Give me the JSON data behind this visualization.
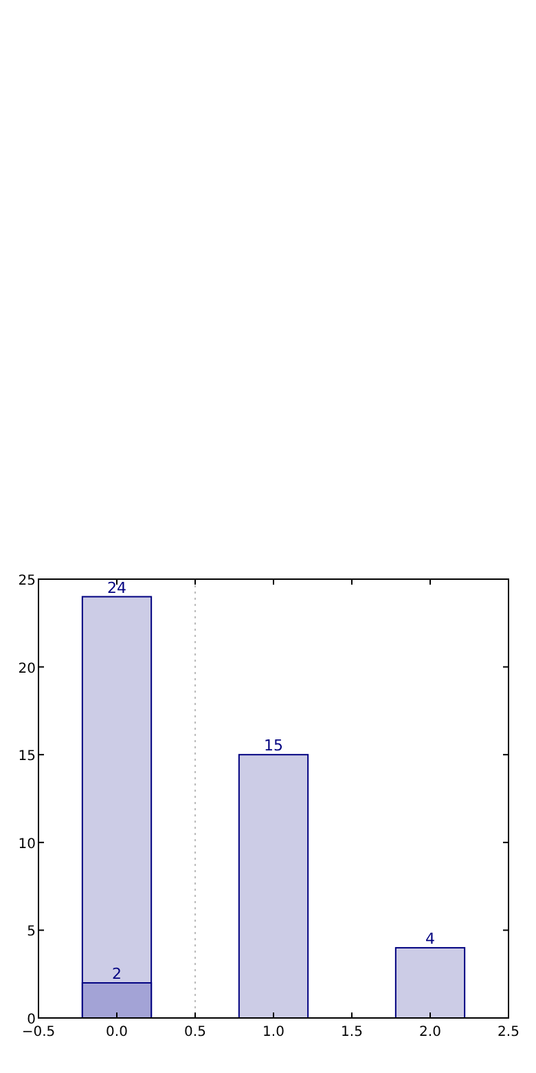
{
  "chart_data": {
    "type": "bar",
    "x": [
      0,
      1,
      2
    ],
    "series": [
      {
        "color": "#ccccE6",
        "values": [
          24,
          15,
          4
        ]
      },
      {
        "color": "#a3a3d6",
        "values": [
          2,
          null,
          null
        ]
      }
    ],
    "xlim": [
      -0.5,
      2.5
    ],
    "xticks": [
      {
        "value": -0.5,
        "label": "−0.5"
      },
      {
        "value": 0,
        "label": "0.0"
      },
      {
        "value": 0.5,
        "label": "0.5"
      },
      {
        "value": 1,
        "label": "1.0"
      },
      {
        "value": 1.5,
        "label": "1.5"
      },
      {
        "value": 2,
        "label": "2.0"
      },
      {
        "value": 2.5,
        "label": "2.5"
      }
    ],
    "ylim": [
      0,
      25
    ],
    "yticks": [
      0,
      5,
      10,
      15,
      20,
      25
    ],
    "ref_lines": [
      {
        "axis": "x",
        "value": 0.5,
        "color": "#bbbbbb",
        "line_style": "dotted"
      }
    ],
    "data_labels": true,
    "grid": false
  }
}
